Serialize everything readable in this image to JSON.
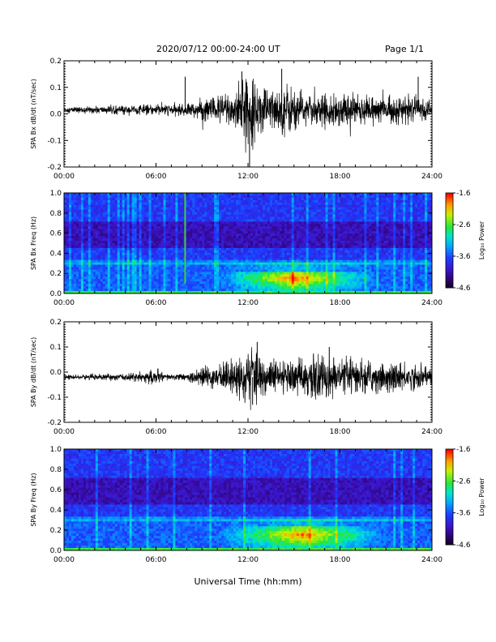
{
  "header": {
    "title": "2020/07/12  00:00-24:00 UT",
    "page": "Page 1/1"
  },
  "xlabel": "Universal Time (hh:mm)",
  "chart_data": [
    {
      "type": "line",
      "ylabel": "SPA Bx dB/dt (nT/sec)",
      "x_ticks": [
        "00:00",
        "06:00",
        "12:00",
        "18:00",
        "24:00"
      ],
      "xlim": [
        0,
        24
      ],
      "ylim": [
        -0.2,
        0.2
      ],
      "y_ticks": [
        "0.2",
        "0.1",
        "0.0",
        "-0.1",
        "-0.2"
      ],
      "envelope": {
        "x_hours": [
          0,
          2,
          4,
          6,
          8,
          9.5,
          10,
          11,
          11.5,
          12,
          12.5,
          13,
          14,
          14.5,
          15,
          16,
          17,
          18,
          19,
          20,
          21,
          22,
          23,
          24
        ],
        "amplitude": [
          0.01,
          0.012,
          0.015,
          0.018,
          0.02,
          0.045,
          0.05,
          0.07,
          0.09,
          0.12,
          0.09,
          0.08,
          0.07,
          0.1,
          0.07,
          0.05,
          0.05,
          0.06,
          0.05,
          0.05,
          0.045,
          0.045,
          0.04,
          0.03
        ]
      },
      "offset": 0.015,
      "spikes": [
        {
          "x": 7.9,
          "y": 0.14
        },
        {
          "x": 11.6,
          "y": 0.16
        },
        {
          "x": 12.1,
          "y": -0.2
        },
        {
          "x": 14.2,
          "y": 0.17
        },
        {
          "x": 23.1,
          "y": 0.14
        }
      ]
    },
    {
      "type": "heatmap",
      "ylabel": "SPA Bx Freq (Hz)",
      "x_ticks": [
        "00:00",
        "06:00",
        "12:00",
        "18:00",
        "24:00"
      ],
      "y_ticks": [
        "1.0",
        "0.8",
        "0.6",
        "0.4",
        "0.2",
        "0.0"
      ],
      "xlim": [
        0,
        24
      ],
      "ylim": [
        0,
        1.0
      ],
      "colorbar": {
        "label": "Log₁₀ Power",
        "ticks": [
          "-1.6",
          "-2.6",
          "-3.6",
          "-4.6"
        ],
        "min": -4.6,
        "max": -1.6
      },
      "vertical_line_hour": 7.9,
      "enhancement": {
        "start": 10,
        "peak": 15,
        "end": 20.5,
        "fmax": 0.22
      }
    },
    {
      "type": "line",
      "ylabel": "SPA By dB/dt (nT/sec)",
      "x_ticks": [
        "00:00",
        "06:00",
        "12:00",
        "18:00",
        "24:00"
      ],
      "xlim": [
        0,
        24
      ],
      "ylim": [
        -0.2,
        0.2
      ],
      "y_ticks": [
        "0.2",
        "0.1",
        "0.0",
        "-0.1",
        "-0.2"
      ],
      "envelope": {
        "x_hours": [
          0,
          2,
          4,
          5.5,
          6,
          6.5,
          8,
          9.3,
          10,
          11,
          12,
          12.5,
          13,
          14,
          15,
          16,
          17,
          18,
          19,
          20,
          21,
          22,
          23,
          24
        ],
        "amplitude": [
          0.008,
          0.01,
          0.012,
          0.02,
          0.03,
          0.012,
          0.012,
          0.04,
          0.045,
          0.06,
          0.1,
          0.09,
          0.07,
          0.06,
          0.06,
          0.07,
          0.08,
          0.06,
          0.06,
          0.06,
          0.05,
          0.05,
          0.045,
          0.035
        ]
      },
      "offset": -0.02,
      "spikes": [
        {
          "x": 12.6,
          "y": 0.12
        },
        {
          "x": 17.3,
          "y": 0.1
        },
        {
          "x": 12.3,
          "y": -0.13
        }
      ]
    },
    {
      "type": "heatmap",
      "ylabel": "SPA By Freq (Hz)",
      "x_ticks": [
        "00:00",
        "06:00",
        "12:00",
        "18:00",
        "24:00"
      ],
      "y_ticks": [
        "1.0",
        "0.8",
        "0.6",
        "0.4",
        "0.2",
        "0.0"
      ],
      "xlim": [
        0,
        24
      ],
      "ylim": [
        0,
        1.0
      ],
      "colorbar": {
        "label": "Log₁₀ Power",
        "ticks": [
          "-1.6",
          "-2.6",
          "-3.6",
          "-4.6"
        ],
        "min": -4.6,
        "max": -1.6
      },
      "vertical_line_hour": null,
      "enhancement": {
        "start": 10,
        "peak": 15.5,
        "end": 21,
        "fmax": 0.24
      }
    }
  ]
}
